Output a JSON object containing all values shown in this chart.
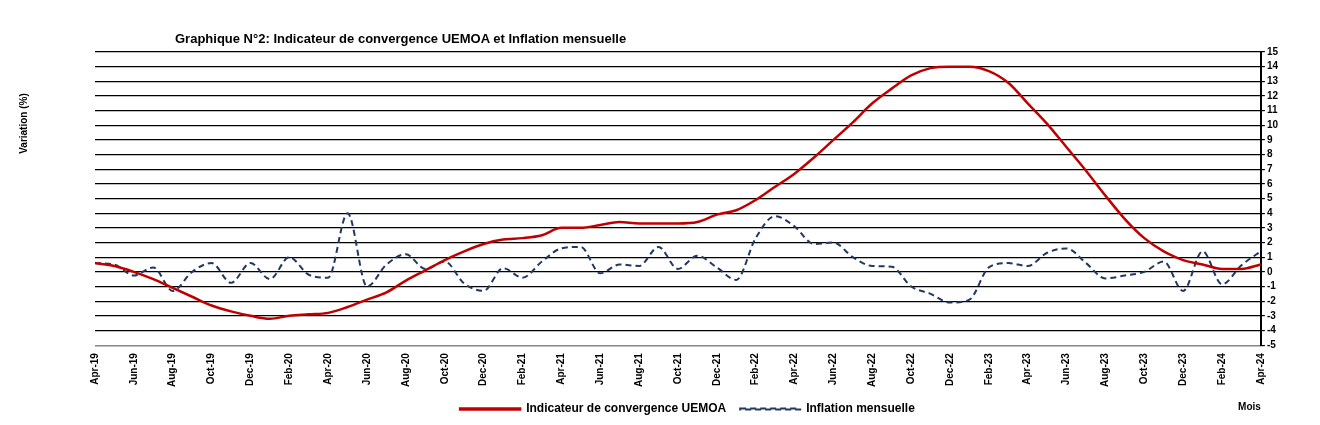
{
  "chart_data": {
    "type": "line",
    "title": "Graphique N°2: Indicateur de convergence UEMOA et Inflation mensuelle",
    "xlabel": "Mois",
    "annotations": [
      "Variation (%)"
    ],
    "categories": [
      "Apr-19",
      null,
      "Jun-19",
      null,
      "Aug-19",
      null,
      "Oct-19",
      null,
      "Dec-19",
      null,
      "Feb-20",
      null,
      "Apr-20",
      null,
      "Jun-20",
      null,
      "Aug-20",
      null,
      "Oct-20",
      null,
      "Dec-20",
      null,
      "Feb-21",
      null,
      "Apr-21",
      null,
      "Jun-21",
      null,
      "Aug-21",
      null,
      "Oct-21",
      null,
      "Dec-21",
      null,
      "Feb-22",
      null,
      "Apr-22",
      null,
      "Jun-22",
      null,
      "Aug-22",
      null,
      "Oct-22",
      null,
      "Dec-22",
      null,
      "Feb-23",
      null,
      "Apr-23",
      null,
      "Jun-23",
      null,
      "Aug-23",
      null,
      "Oct-23",
      null,
      "Dec-23",
      null,
      "Feb-24",
      null,
      "Apr-24"
    ],
    "series": [
      {
        "name": "Indicateur de convergence UEMOA",
        "color": "#c00000",
        "line_style": "solid",
        "values": [
          0.6,
          0.4,
          0,
          -0.5,
          -1.1,
          -1.7,
          -2.3,
          -2.7,
          -3.0,
          -3.2,
          -3.0,
          -2.9,
          -2.8,
          -2.4,
          -1.9,
          -1.4,
          -0.6,
          0.1,
          0.8,
          1.4,
          1.9,
          2.2,
          2.3,
          2.5,
          3.0,
          3.0,
          3.2,
          3.4,
          3.3,
          3.3,
          3.3,
          3.4,
          3.9,
          4.2,
          4.9,
          5.8,
          6.7,
          7.8,
          9.0,
          10.2,
          11.5,
          12.5,
          13.4,
          13.9,
          14.0,
          14.0,
          13.7,
          12.9,
          11.5,
          10.1,
          8.5,
          6.9,
          5.2,
          3.6,
          2.3,
          1.4,
          0.8,
          0.5,
          0.2,
          0.2,
          0.5
        ]
      },
      {
        "name": "Inflation mensuelle",
        "color": "#1f3864",
        "line_style": "dashed",
        "values": [
          0.6,
          0.5,
          -0.25,
          0.3,
          -1.3,
          0,
          0.6,
          -0.75,
          0.6,
          -0.5,
          1.0,
          -0.2,
          -0.4,
          4.0,
          -1.0,
          0.5,
          1.2,
          0.2,
          0.7,
          -0.8,
          -1.3,
          0.25,
          -0.4,
          0.7,
          1.6,
          1.7,
          -0.1,
          0.5,
          0.4,
          1.7,
          0.2,
          1.1,
          0.3,
          -0.55,
          2.3,
          3.8,
          3.1,
          1.9,
          2.0,
          1.0,
          0.4,
          0.35,
          -1.0,
          -1.5,
          -2.1,
          -1.9,
          0.3,
          0.6,
          0.4,
          1.3,
          1.6,
          0.6,
          -0.45,
          -0.25,
          0,
          0.7,
          -1.3,
          1.4,
          -0.85,
          0.45,
          1.4
        ]
      }
    ],
    "ylim": [
      -5,
      15
    ],
    "yticks": [
      -5,
      -4,
      -3,
      -2,
      -1,
      0,
      1,
      2,
      3,
      4,
      5,
      6,
      7,
      8,
      9,
      10,
      11,
      12,
      13,
      14,
      15
    ],
    "grid": "y",
    "legend": "bottom",
    "marker": "none"
  }
}
